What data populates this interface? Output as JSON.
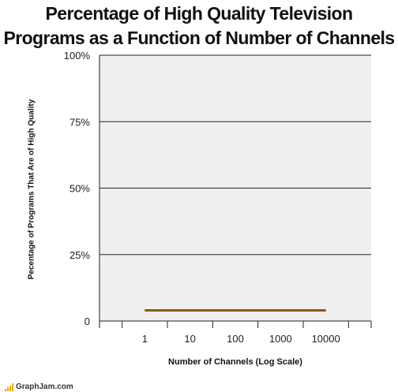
{
  "chart_data": {
    "type": "line",
    "title_lines": [
      "Percentage of High Quality Television",
      "Programs as a Function of Number of Channels"
    ],
    "xlabel": "Number of Channels (Log Scale)",
    "ylabel": "Pecentage of Programs That Are of High Quality",
    "x_scale": "log",
    "x_ticks": [
      1,
      10,
      100,
      1000,
      10000
    ],
    "x_tick_labels": [
      "1",
      "10",
      "100",
      "1000",
      "10000"
    ],
    "ylim": [
      0,
      100
    ],
    "y_ticks": [
      0,
      25,
      50,
      75,
      100
    ],
    "y_tick_labels": [
      "0",
      "25%",
      "50%",
      "75%",
      "100%"
    ],
    "grid": true,
    "series": [
      {
        "x": [
          1,
          10000
        ],
        "values": [
          4,
          4
        ],
        "color": "#8b5a00"
      }
    ]
  },
  "footer": {
    "brand": "GraphJam.com",
    "icon": "bar-chart-icon"
  },
  "colors": {
    "plot_bg": "#efefef",
    "line": "#8b5a00",
    "grid": "#222222"
  }
}
